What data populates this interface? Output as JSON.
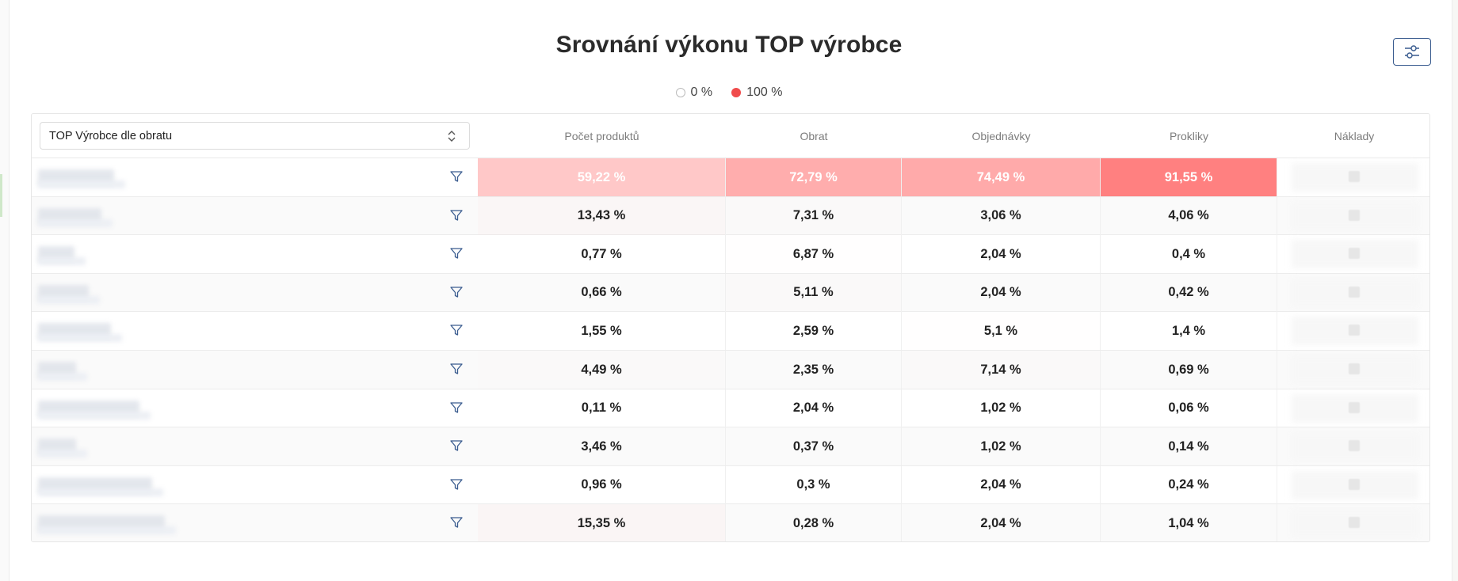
{
  "title": "Srovnání výkonu TOP výrobce",
  "legend": [
    {
      "label": "0 %",
      "color": "#ffffff"
    },
    {
      "label": "100 %",
      "color": "#f04b4b"
    }
  ],
  "selector": {
    "value": "TOP Výrobce dle obratu"
  },
  "columns": [
    "Počet produktů",
    "Obrat",
    "Objednávky",
    "Prokliky",
    "Náklady"
  ],
  "rows": [
    {
      "values": [
        "59,22 %",
        "72,79 %",
        "74,49 %",
        "91,55 %"
      ],
      "pct": [
        59.22,
        72.79,
        74.49,
        91.55
      ]
    },
    {
      "values": [
        "13,43 %",
        "7,31 %",
        "3,06 %",
        "4,06 %"
      ],
      "pct": [
        13.43,
        7.31,
        3.06,
        4.06
      ]
    },
    {
      "values": [
        "0,77 %",
        "6,87 %",
        "2,04 %",
        "0,4 %"
      ],
      "pct": [
        0.77,
        6.87,
        2.04,
        0.4
      ]
    },
    {
      "values": [
        "0,66 %",
        "5,11 %",
        "2,04 %",
        "0,42 %"
      ],
      "pct": [
        0.66,
        5.11,
        2.04,
        0.42
      ]
    },
    {
      "values": [
        "1,55 %",
        "2,59 %",
        "5,1 %",
        "1,4 %"
      ],
      "pct": [
        1.55,
        2.59,
        5.1,
        1.4
      ]
    },
    {
      "values": [
        "4,49 %",
        "2,35 %",
        "7,14 %",
        "0,69 %"
      ],
      "pct": [
        4.49,
        2.35,
        7.14,
        0.69
      ]
    },
    {
      "values": [
        "0,11 %",
        "2,04 %",
        "1,02 %",
        "0,06 %"
      ],
      "pct": [
        0.11,
        2.04,
        1.02,
        0.06
      ]
    },
    {
      "values": [
        "3,46 %",
        "0,37 %",
        "1,02 %",
        "0,14 %"
      ],
      "pct": [
        3.46,
        0.37,
        1.02,
        0.14
      ]
    },
    {
      "values": [
        "0,96 %",
        "0,3 %",
        "2,04 %",
        "0,24 %"
      ],
      "pct": [
        0.96,
        0.3,
        2.04,
        0.24
      ]
    },
    {
      "values": [
        "15,35 %",
        "0,28 %",
        "2,04 %",
        "1,04 %"
      ],
      "pct": [
        15.35,
        0.28,
        2.04,
        1.04
      ]
    }
  ],
  "icons": {
    "settings": "sliders-icon",
    "filter": "filter-icon",
    "select": "chevron-updown-icon"
  },
  "colors": {
    "accent": "#3a5c8f",
    "heat": "#f04b4b"
  }
}
